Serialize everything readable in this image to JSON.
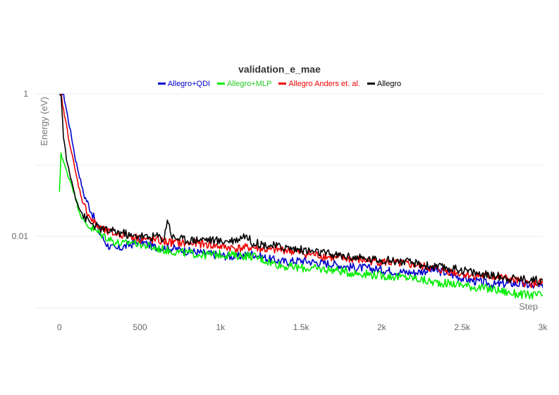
{
  "chart_data": {
    "type": "line",
    "title": "validation_e_mae",
    "xlabel": "Step",
    "ylabel": "Energy (eV)",
    "y_scale": "log",
    "xlim": [
      -150,
      3000
    ],
    "ylim": [
      0.0008,
      1
    ],
    "x_ticks": [
      0,
      500,
      1000,
      1500,
      2000,
      2500,
      3000
    ],
    "x_tick_labels": [
      "0",
      "500",
      "1k",
      "1.5k",
      "2k",
      "2.5k",
      "3k"
    ],
    "y_ticks": [
      0.01,
      1
    ],
    "y_tick_labels": [
      "0.01",
      "1"
    ],
    "grid": true,
    "legend_position": "top",
    "series": [
      {
        "name": "Allegro+QDI",
        "color": "#0000cc",
        "x": [
          0,
          25,
          50,
          75,
          100,
          125,
          150,
          200,
          250,
          300,
          350,
          400,
          450,
          500,
          600,
          700,
          800,
          900,
          1000,
          1100,
          1200,
          1300,
          1400,
          1500,
          1600,
          1700,
          1800,
          1900,
          2000,
          2100,
          2200,
          2300,
          2400,
          2500,
          2600,
          2700,
          2800,
          2900,
          3000
        ],
        "y": [
          1.0,
          1.0,
          0.5,
          0.25,
          0.12,
          0.07,
          0.04,
          0.022,
          0.011,
          0.0075,
          0.0065,
          0.0072,
          0.0078,
          0.0085,
          0.007,
          0.0068,
          0.0062,
          0.0058,
          0.0054,
          0.0052,
          0.0057,
          0.0048,
          0.0044,
          0.0046,
          0.0043,
          0.0041,
          0.0037,
          0.0036,
          0.0034,
          0.0032,
          0.0031,
          0.0034,
          0.0031,
          0.0026,
          0.0023,
          0.0021,
          0.0022,
          0.0021,
          0.0019
        ]
      },
      {
        "name": "Allegro+MLP",
        "color": "#00ee00",
        "x": [
          0,
          10,
          25,
          50,
          75,
          100,
          125,
          150,
          200,
          250,
          300,
          350,
          400,
          450,
          500,
          600,
          700,
          800,
          900,
          1000,
          1100,
          1200,
          1300,
          1400,
          1500,
          1600,
          1700,
          1800,
          1900,
          2000,
          2100,
          2200,
          2300,
          2400,
          2500,
          2600,
          2700,
          2800,
          2900,
          3000
        ],
        "y": [
          0.04,
          0.15,
          0.11,
          0.075,
          0.055,
          0.035,
          0.022,
          0.016,
          0.013,
          0.011,
          0.0095,
          0.0082,
          0.0078,
          0.0085,
          0.0078,
          0.0068,
          0.0062,
          0.0058,
          0.0055,
          0.0056,
          0.0054,
          0.0053,
          0.0044,
          0.0038,
          0.0036,
          0.0035,
          0.0034,
          0.0031,
          0.003,
          0.0028,
          0.0027,
          0.0026,
          0.0023,
          0.0022,
          0.0021,
          0.0019,
          0.0018,
          0.0016,
          0.0015,
          0.0015
        ]
      },
      {
        "name": "Allegro Anders et. al.",
        "color": "#ee0000",
        "x": [
          0,
          10,
          25,
          50,
          75,
          100,
          125,
          150,
          200,
          250,
          300,
          350,
          400,
          450,
          500,
          600,
          700,
          800,
          900,
          1000,
          1100,
          1200,
          1300,
          1400,
          1500,
          1600,
          1700,
          1800,
          1900,
          2000,
          2100,
          2200,
          2300,
          2400,
          2500,
          2600,
          2700,
          2800,
          2900,
          3000
        ],
        "y": [
          1.0,
          1.0,
          0.6,
          0.3,
          0.15,
          0.08,
          0.045,
          0.028,
          0.017,
          0.013,
          0.0115,
          0.0108,
          0.0105,
          0.0102,
          0.0092,
          0.0088,
          0.0082,
          0.008,
          0.0078,
          0.0072,
          0.0068,
          0.007,
          0.0064,
          0.0065,
          0.0058,
          0.0055,
          0.005,
          0.0048,
          0.0046,
          0.0044,
          0.0042,
          0.004,
          0.0036,
          0.0033,
          0.003,
          0.0028,
          0.0027,
          0.0025,
          0.0022,
          0.0022
        ]
      },
      {
        "name": "Allegro",
        "color": "#000000",
        "x": [
          0,
          10,
          25,
          50,
          75,
          100,
          125,
          150,
          200,
          250,
          300,
          350,
          400,
          450,
          500,
          550,
          600,
          650,
          670,
          700,
          800,
          900,
          1000,
          1100,
          1150,
          1200,
          1300,
          1400,
          1500,
          1600,
          1700,
          1800,
          1900,
          2000,
          2100,
          2200,
          2300,
          2400,
          2500,
          2600,
          2700,
          2800,
          2900,
          3000
        ],
        "y": [
          1.0,
          1.0,
          0.25,
          0.1,
          0.06,
          0.035,
          0.025,
          0.019,
          0.015,
          0.013,
          0.012,
          0.0115,
          0.0112,
          0.0098,
          0.0105,
          0.0095,
          0.0102,
          0.0092,
          0.018,
          0.0098,
          0.0088,
          0.0092,
          0.0085,
          0.009,
          0.0105,
          0.0082,
          0.0075,
          0.007,
          0.0065,
          0.006,
          0.0055,
          0.0052,
          0.0048,
          0.0047,
          0.0045,
          0.0042,
          0.0038,
          0.0036,
          0.0034,
          0.003,
          0.0028,
          0.0026,
          0.0025,
          0.0024
        ]
      }
    ]
  }
}
